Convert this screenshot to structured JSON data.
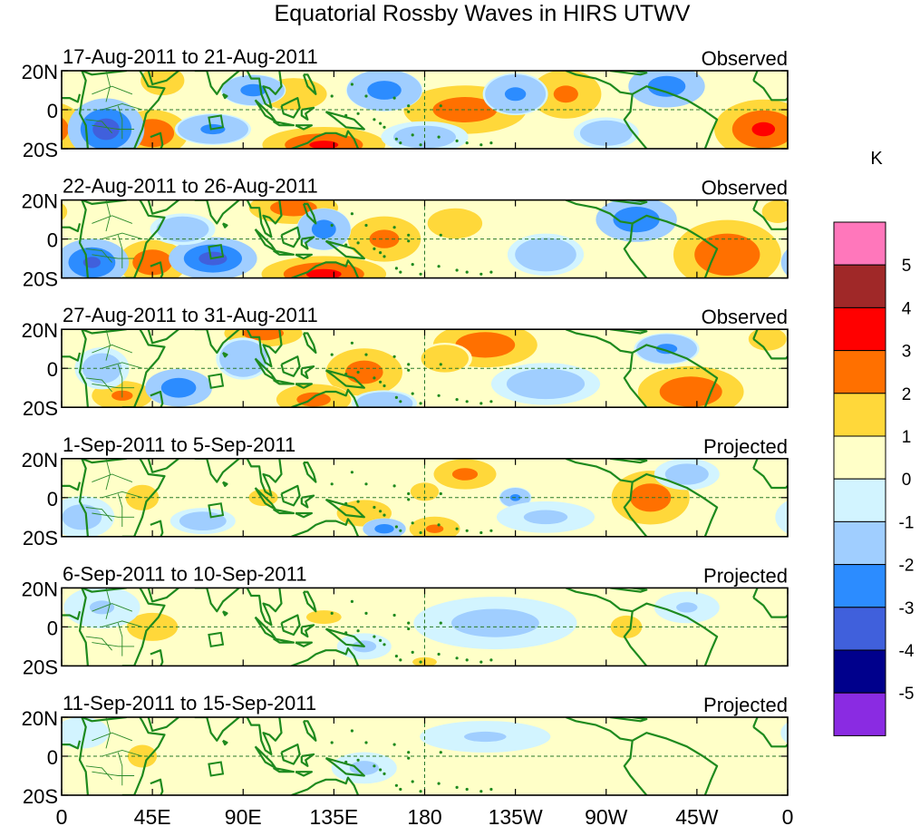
{
  "chart_data": {
    "type": "heatmap",
    "title": "Equatorial Rossby Waves in HIRS UTWV",
    "units_label": "K",
    "x_tick_labels": [
      "0",
      "45E",
      "90E",
      "135E",
      "180",
      "135W",
      "90W",
      "45W",
      "0"
    ],
    "x_range_deg_east": [
      0,
      360
    ],
    "y_tick_labels": [
      "20N",
      "0",
      "20S"
    ],
    "y_range_deg_lat": [
      -20,
      20
    ],
    "colorbar": {
      "tick_labels": [
        "5",
        "4",
        "3",
        "2",
        "1",
        "0",
        "-1",
        "-2",
        "-3",
        "-4",
        "-5"
      ],
      "colors": [
        "#ff77bb",
        "#a02828",
        "#ff0000",
        "#ff7000",
        "#ffd83a",
        "#ffffc8",
        "#d2f4ff",
        "#a0ceff",
        "#2c8cff",
        "#4060dc",
        "#00008c",
        "#8a2be2"
      ]
    },
    "panels": [
      {
        "date_range": "17-Aug-2011 to 21-Aug-2011",
        "kind": "Observed",
        "anomalies": [
          {
            "lon": 348,
            "lat": -10,
            "rlon": 16,
            "rlat": 10,
            "value": 3.2
          },
          {
            "lon": 200,
            "lat": 0,
            "rlon": 22,
            "rlat": 9,
            "value": 2.6
          },
          {
            "lon": 250,
            "lat": 8,
            "rlon": 14,
            "rlat": 10,
            "value": 2.2
          },
          {
            "lon": 45,
            "lat": -12,
            "rlon": 12,
            "rlat": 8,
            "value": 3.0
          },
          {
            "lon": 130,
            "lat": -18,
            "rlon": 20,
            "rlat": 6,
            "value": 3.2
          },
          {
            "lon": 115,
            "lat": 8,
            "rlon": 14,
            "rlat": 7,
            "value": 2.0
          },
          {
            "lon": 50,
            "lat": 15,
            "rlon": 10,
            "rlat": 7,
            "value": 1.8
          },
          {
            "lon": 95,
            "lat": 10,
            "rlon": 12,
            "rlat": 6,
            "value": -2.3
          },
          {
            "lon": 22,
            "lat": -10,
            "rlon": 12,
            "rlat": 10,
            "value": -3.5
          },
          {
            "lon": 160,
            "lat": 10,
            "rlon": 14,
            "rlat": 8,
            "value": -2.4
          },
          {
            "lon": 225,
            "lat": 8,
            "rlon": 12,
            "rlat": 8,
            "value": -2.2
          },
          {
            "lon": 300,
            "lat": 12,
            "rlon": 14,
            "rlat": 8,
            "value": -2.5
          },
          {
            "lon": 270,
            "lat": -12,
            "rlon": 12,
            "rlat": 6,
            "value": -1.8
          },
          {
            "lon": 75,
            "lat": -10,
            "rlon": 14,
            "rlat": 6,
            "value": -2.2
          },
          {
            "lon": 180,
            "lat": -14,
            "rlon": 16,
            "rlat": 6,
            "value": -1.6
          }
        ]
      },
      {
        "date_range": "22-Aug-2011 to 26-Aug-2011",
        "kind": "Observed",
        "anomalies": [
          {
            "lon": 330,
            "lat": -8,
            "rlon": 18,
            "rlat": 12,
            "value": 3.0
          },
          {
            "lon": 45,
            "lat": -12,
            "rlon": 12,
            "rlat": 8,
            "value": 2.8
          },
          {
            "lon": 130,
            "lat": -18,
            "rlon": 20,
            "rlat": 6,
            "value": 3.3
          },
          {
            "lon": 115,
            "lat": 16,
            "rlon": 16,
            "rlat": 6,
            "value": 2.6
          },
          {
            "lon": 160,
            "lat": 0,
            "rlon": 14,
            "rlat": 9,
            "value": 2.3
          },
          {
            "lon": 195,
            "lat": 8,
            "rlon": 14,
            "rlat": 8,
            "value": 1.6
          },
          {
            "lon": 15,
            "lat": -12,
            "rlon": 12,
            "rlat": 8,
            "value": -3.2
          },
          {
            "lon": 75,
            "lat": -10,
            "rlon": 14,
            "rlat": 7,
            "value": -3.4
          },
          {
            "lon": 130,
            "lat": 5,
            "rlon": 10,
            "rlat": 8,
            "value": -2.4
          },
          {
            "lon": 285,
            "lat": 10,
            "rlon": 14,
            "rlat": 8,
            "value": -2.8
          },
          {
            "lon": 240,
            "lat": -8,
            "rlon": 14,
            "rlat": 8,
            "value": -1.8
          },
          {
            "lon": 60,
            "lat": 5,
            "rlon": 12,
            "rlat": 6,
            "value": -1.8
          },
          {
            "lon": 355,
            "lat": 14,
            "rlon": 8,
            "rlat": 6,
            "value": 1.6
          }
        ]
      },
      {
        "date_range": "27-Aug-2011 to 31-Aug-2011",
        "kind": "Observed",
        "anomalies": [
          {
            "lon": 312,
            "lat": -12,
            "rlon": 18,
            "rlat": 9,
            "value": 2.9
          },
          {
            "lon": 210,
            "lat": 12,
            "rlon": 18,
            "rlat": 8,
            "value": 2.8
          },
          {
            "lon": 190,
            "lat": 5,
            "rlon": 10,
            "rlat": 6,
            "value": 2.0
          },
          {
            "lon": 150,
            "lat": -2,
            "rlon": 14,
            "rlat": 9,
            "value": 2.5
          },
          {
            "lon": 125,
            "lat": -16,
            "rlon": 14,
            "rlat": 6,
            "value": 2.4
          },
          {
            "lon": 100,
            "lat": 18,
            "rlon": 14,
            "rlat": 5,
            "value": 2.6
          },
          {
            "lon": 30,
            "lat": -14,
            "rlon": 12,
            "rlat": 6,
            "value": 2.2
          },
          {
            "lon": 58,
            "lat": -10,
            "rlon": 12,
            "rlat": 7,
            "value": -2.6
          },
          {
            "lon": 90,
            "lat": 5,
            "rlon": 10,
            "rlat": 8,
            "value": -2.0
          },
          {
            "lon": 240,
            "lat": -8,
            "rlon": 20,
            "rlat": 8,
            "value": -1.6
          },
          {
            "lon": 300,
            "lat": 10,
            "rlon": 12,
            "rlat": 6,
            "value": -2.2
          },
          {
            "lon": 160,
            "lat": -18,
            "rlon": 12,
            "rlat": 5,
            "value": -2.0
          },
          {
            "lon": 20,
            "lat": 0,
            "rlon": 10,
            "rlat": 8,
            "value": -1.6
          },
          {
            "lon": 350,
            "lat": 15,
            "rlon": 8,
            "rlat": 5,
            "value": 2.0
          }
        ]
      },
      {
        "date_range": "1-Sep-2011 to 5-Sep-2011",
        "kind": "Projected",
        "anomalies": [
          {
            "lon": 292,
            "lat": 0,
            "rlon": 14,
            "rlat": 10,
            "value": 2.6
          },
          {
            "lon": 200,
            "lat": 12,
            "rlon": 12,
            "rlat": 6,
            "value": 2.3
          },
          {
            "lon": 185,
            "lat": -16,
            "rlon": 10,
            "rlat": 5,
            "value": 2.2
          },
          {
            "lon": 180,
            "lat": 3,
            "rlon": 6,
            "rlat": 4,
            "value": 2.0
          },
          {
            "lon": 150,
            "lat": -8,
            "rlon": 14,
            "rlat": 7,
            "value": 1.6
          },
          {
            "lon": 40,
            "lat": 0,
            "rlon": 10,
            "rlat": 8,
            "value": 1.4
          },
          {
            "lon": 100,
            "lat": 0,
            "rlon": 10,
            "rlat": 6,
            "value": 1.3
          },
          {
            "lon": 70,
            "lat": -12,
            "rlon": 12,
            "rlat": 5,
            "value": -1.6
          },
          {
            "lon": 160,
            "lat": -16,
            "rlon": 8,
            "rlat": 4,
            "value": -2.4
          },
          {
            "lon": 225,
            "lat": 0,
            "rlon": 6,
            "rlat": 4,
            "value": -2.2
          },
          {
            "lon": 240,
            "lat": -10,
            "rlon": 18,
            "rlat": 6,
            "value": -1.2
          },
          {
            "lon": 310,
            "lat": 12,
            "rlon": 12,
            "rlat": 6,
            "value": -1.5
          },
          {
            "lon": 10,
            "lat": -10,
            "rlon": 12,
            "rlat": 8,
            "value": -1.4
          }
        ]
      },
      {
        "date_range": "6-Sep-2011 to 10-Sep-2011",
        "kind": "Projected",
        "anomalies": [
          {
            "lon": 45,
            "lat": 0,
            "rlon": 14,
            "rlat": 8,
            "value": 1.5
          },
          {
            "lon": 130,
            "lat": 5,
            "rlon": 20,
            "rlat": 8,
            "value": 1.1
          },
          {
            "lon": 280,
            "lat": 0,
            "rlon": 8,
            "rlat": 6,
            "value": 1.6
          },
          {
            "lon": 180,
            "lat": -18,
            "rlon": 10,
            "rlat": 4,
            "value": 1.2
          },
          {
            "lon": 215,
            "lat": 2,
            "rlon": 30,
            "rlat": 10,
            "value": -1.3
          },
          {
            "lon": 150,
            "lat": -10,
            "rlon": 10,
            "rlat": 5,
            "value": -1.2
          },
          {
            "lon": 20,
            "lat": 10,
            "rlon": 14,
            "rlat": 8,
            "value": -1.1
          },
          {
            "lon": 310,
            "lat": 10,
            "rlon": 12,
            "rlat": 6,
            "value": -1.1
          }
        ]
      },
      {
        "date_range": "11-Sep-2011 to 15-Sep-2011",
        "kind": "Projected",
        "anomalies": [
          {
            "lon": 100,
            "lat": 5,
            "rlon": 60,
            "rlat": 12,
            "value": 0.8
          },
          {
            "lon": 40,
            "lat": 0,
            "rlon": 10,
            "rlat": 8,
            "value": 1.3
          },
          {
            "lon": 210,
            "lat": 10,
            "rlon": 24,
            "rlat": 6,
            "value": -1.1
          },
          {
            "lon": 300,
            "lat": -5,
            "rlon": 24,
            "rlat": 8,
            "value": 0.9
          },
          {
            "lon": 150,
            "lat": -6,
            "rlon": 12,
            "rlat": 6,
            "value": -1.2
          },
          {
            "lon": 10,
            "lat": 12,
            "rlon": 10,
            "rlat": 6,
            "value": -0.9
          },
          {
            "lon": 240,
            "lat": -12,
            "rlon": 14,
            "rlat": 5,
            "value": 0.8
          }
        ]
      }
    ]
  }
}
